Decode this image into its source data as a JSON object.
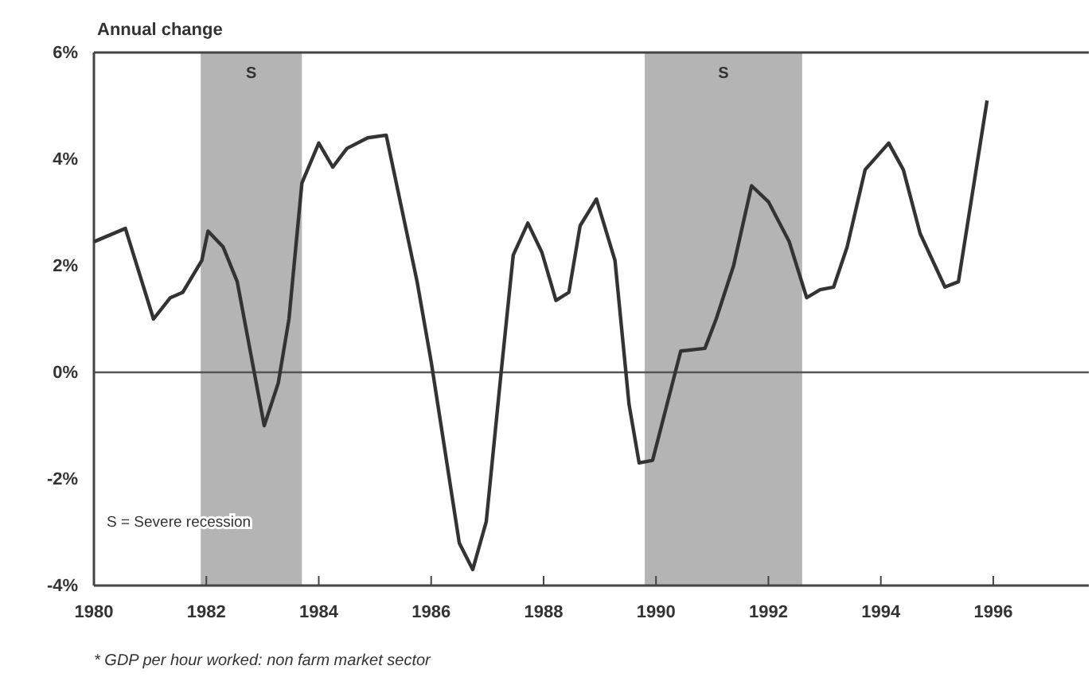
{
  "chart_data": {
    "type": "line",
    "ylabel": "Annual change",
    "x": [
      1980.0,
      1980.56,
      1981.06,
      1981.36,
      1981.58,
      1981.92,
      1982.03,
      1982.3,
      1982.55,
      1983.03,
      1983.28,
      1983.47,
      1983.7,
      1984.0,
      1984.25,
      1984.5,
      1984.87,
      1985.2,
      1985.75,
      1986.0,
      1986.5,
      1986.74,
      1986.98,
      1987.24,
      1987.46,
      1987.72,
      1987.97,
      1988.22,
      1988.45,
      1988.65,
      1988.94,
      1989.27,
      1989.52,
      1989.7,
      1989.94,
      1990.44,
      1990.87,
      1991.07,
      1991.38,
      1991.7,
      1992.0,
      1992.37,
      1992.68,
      1992.92,
      1993.16,
      1993.4,
      1993.72,
      1994.14,
      1994.4,
      1994.7,
      1995.14,
      1995.38,
      1995.89
    ],
    "series": [
      {
        "color": "#333333",
        "values": [
          2.45,
          2.7,
          1.0,
          1.4,
          1.5,
          2.1,
          2.65,
          2.35,
          1.7,
          -1.0,
          -0.2,
          1.0,
          3.55,
          4.3,
          3.85,
          4.2,
          4.4,
          4.45,
          1.7,
          0.2,
          -3.2,
          -3.7,
          -2.8,
          -0.05,
          2.2,
          2.8,
          2.25,
          1.35,
          1.5,
          2.75,
          3.25,
          2.1,
          -0.6,
          -1.7,
          -1.65,
          0.4,
          0.45,
          1.0,
          2.0,
          3.5,
          3.2,
          2.45,
          1.4,
          1.55,
          1.6,
          2.35,
          3.8,
          4.3,
          3.8,
          2.6,
          1.6,
          1.7,
          5.1
        ]
      }
    ],
    "xlim": [
      1980,
      1997.7
    ],
    "xticks": [
      1980,
      1982,
      1984,
      1986,
      1988,
      1990,
      1992,
      1994,
      1996
    ],
    "ylim": [
      -4,
      6
    ],
    "yticks": [
      {
        "value": -4,
        "label": "-4%"
      },
      {
        "value": -2,
        "label": "-2%"
      },
      {
        "value": 0,
        "label": "0%"
      },
      {
        "value": 2,
        "label": "2%"
      },
      {
        "value": 4,
        "label": "4%"
      },
      {
        "value": 6,
        "label": "6%"
      }
    ],
    "ref_lines": [
      {
        "axis": "y",
        "value": 0,
        "color": "#555555"
      }
    ],
    "bands": [
      {
        "axis": "x",
        "from": 1981.9,
        "to": 1983.7,
        "label": "S",
        "color": "#b4b4b4"
      },
      {
        "axis": "x",
        "from": 1989.8,
        "to": 1992.6,
        "label": "S",
        "color": "#b4b4b4"
      }
    ],
    "annotations": [
      "S = Severe recession",
      "* GDP per hour worked: non farm market sector"
    ],
    "grid": false,
    "marker": "none",
    "line_style": "solid"
  }
}
